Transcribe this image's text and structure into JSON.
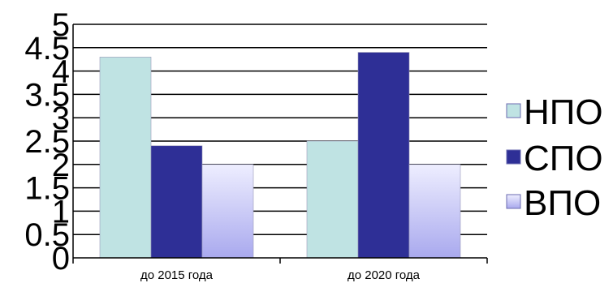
{
  "chart_data": {
    "type": "bar",
    "categories": [
      "до 2015 года",
      "до 2020 года"
    ],
    "series": [
      {
        "name": "НПО",
        "values": [
          4.3,
          2.5
        ],
        "color": "#bfe3e3"
      },
      {
        "name": "СПО",
        "values": [
          2.4,
          4.4
        ],
        "color": "#2e2f96"
      },
      {
        "name": "ВПО",
        "values": [
          2.0,
          2.0
        ],
        "color": "#c9c9f7"
      }
    ],
    "y_ticks": [
      "0",
      "0.5",
      "1",
      "1.5",
      "2",
      "2.5",
      "3",
      "3.5",
      "4",
      "4.5",
      "5"
    ],
    "ylim": [
      0,
      5
    ],
    "grid": true,
    "legend_position": "right"
  }
}
